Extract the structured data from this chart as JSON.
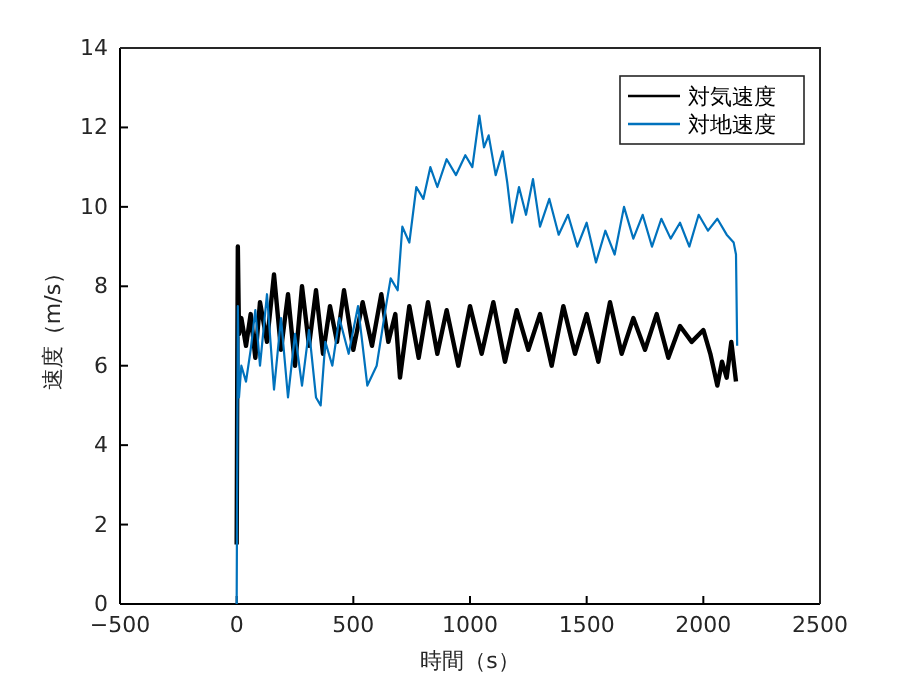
{
  "chart_data": {
    "type": "line",
    "xlabel": "時間（s）",
    "ylabel": "速度（m/s）",
    "xlim": [
      -500,
      2500
    ],
    "ylim": [
      0,
      14
    ],
    "xticks": [
      -500,
      0,
      500,
      1000,
      1500,
      2000,
      2500
    ],
    "yticks": [
      0,
      2,
      4,
      6,
      8,
      10,
      12,
      14
    ],
    "grid": false,
    "legend": "top right",
    "line_style": "solid",
    "marker": "none",
    "series": [
      {
        "name": "対気速度",
        "color": "#000000",
        "x": [
          0,
          3,
          5,
          10,
          20,
          40,
          60,
          80,
          100,
          130,
          160,
          190,
          220,
          250,
          280,
          310,
          340,
          370,
          400,
          430,
          460,
          500,
          540,
          580,
          620,
          650,
          680,
          700,
          740,
          780,
          820,
          860,
          900,
          950,
          1000,
          1050,
          1100,
          1150,
          1200,
          1250,
          1300,
          1350,
          1400,
          1450,
          1500,
          1550,
          1600,
          1650,
          1700,
          1750,
          1800,
          1850,
          1900,
          1950,
          2000,
          2030,
          2060,
          2080,
          2100,
          2120,
          2140
        ],
        "values": [
          1.5,
          6.5,
          9.0,
          6.8,
          7.2,
          6.5,
          7.3,
          6.2,
          7.6,
          6.6,
          8.3,
          6.4,
          7.8,
          6.0,
          8.0,
          6.5,
          7.9,
          6.3,
          7.5,
          6.6,
          7.9,
          6.4,
          7.6,
          6.5,
          7.8,
          6.6,
          7.3,
          5.7,
          7.5,
          6.2,
          7.6,
          6.3,
          7.4,
          6.0,
          7.5,
          6.3,
          7.6,
          6.1,
          7.4,
          6.4,
          7.3,
          6.0,
          7.5,
          6.3,
          7.3,
          6.1,
          7.6,
          6.3,
          7.2,
          6.4,
          7.3,
          6.2,
          7.0,
          6.6,
          6.9,
          6.3,
          5.5,
          6.1,
          5.7,
          6.6,
          5.6
        ]
      },
      {
        "name": "対地速度",
        "color": "#0072bd",
        "x": [
          0,
          5,
          10,
          20,
          40,
          60,
          80,
          100,
          130,
          160,
          190,
          220,
          250,
          280,
          310,
          340,
          360,
          380,
          410,
          440,
          480,
          520,
          560,
          600,
          640,
          660,
          690,
          710,
          740,
          770,
          800,
          830,
          860,
          900,
          940,
          980,
          1010,
          1040,
          1060,
          1080,
          1110,
          1140,
          1160,
          1180,
          1210,
          1240,
          1270,
          1300,
          1340,
          1380,
          1420,
          1460,
          1500,
          1540,
          1580,
          1620,
          1660,
          1700,
          1740,
          1780,
          1820,
          1860,
          1900,
          1940,
          1980,
          2020,
          2060,
          2100,
          2130,
          2140,
          2145
        ],
        "values": [
          0,
          7.5,
          5.2,
          6.0,
          5.6,
          6.4,
          7.4,
          6.0,
          7.8,
          5.4,
          7.2,
          5.2,
          6.8,
          5.5,
          6.9,
          5.2,
          5.0,
          6.6,
          6.0,
          7.2,
          6.3,
          7.5,
          5.5,
          6.0,
          7.5,
          8.2,
          7.9,
          9.5,
          9.1,
          10.5,
          10.2,
          11.0,
          10.5,
          11.2,
          10.8,
          11.3,
          11.0,
          12.3,
          11.5,
          11.8,
          10.8,
          11.4,
          10.6,
          9.6,
          10.5,
          9.8,
          10.7,
          9.5,
          10.2,
          9.3,
          9.8,
          9.0,
          9.6,
          8.6,
          9.4,
          8.8,
          10.0,
          9.2,
          9.8,
          9.0,
          9.7,
          9.2,
          9.6,
          9.0,
          9.8,
          9.4,
          9.7,
          9.3,
          9.1,
          8.8,
          6.5
        ]
      }
    ]
  }
}
